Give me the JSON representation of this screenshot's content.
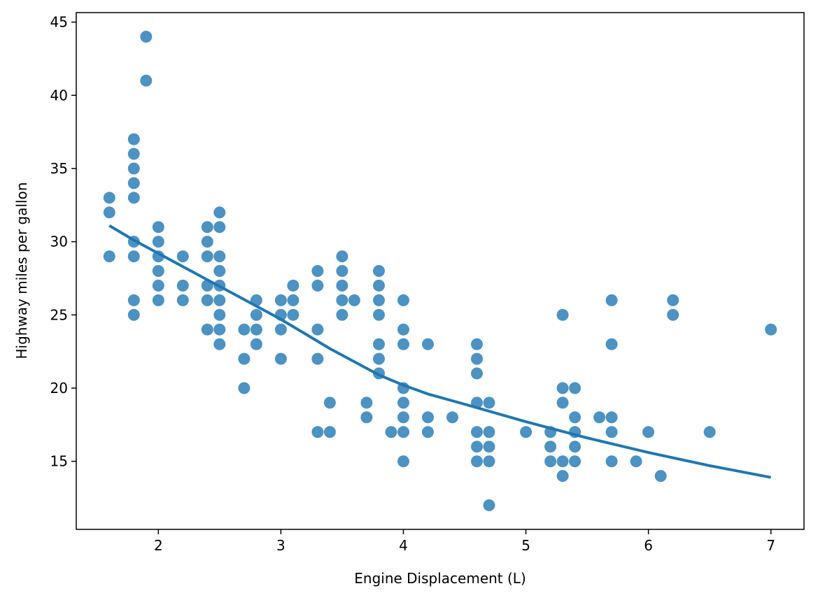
{
  "chart_data": {
    "type": "scatter",
    "xlabel": "Engine Displacement (L)",
    "ylabel": "Highway miles per gallon",
    "xlim": [
      1.33,
      7.27
    ],
    "ylim": [
      10.35,
      45.65
    ],
    "x_ticks": [
      2,
      3,
      4,
      5,
      6,
      7
    ],
    "y_ticks": [
      15,
      20,
      25,
      30,
      35,
      40,
      45
    ],
    "grid": false,
    "legend": "none",
    "point_color": "#1f77b4",
    "line_color": "#1f77b4",
    "points": [
      [
        1.6,
        33
      ],
      [
        1.6,
        32
      ],
      [
        1.6,
        29
      ],
      [
        1.8,
        37
      ],
      [
        1.8,
        36
      ],
      [
        1.8,
        35
      ],
      [
        1.8,
        34
      ],
      [
        1.8,
        33
      ],
      [
        1.8,
        30
      ],
      [
        1.8,
        29
      ],
      [
        1.8,
        26
      ],
      [
        1.8,
        25
      ],
      [
        1.9,
        44
      ],
      [
        1.9,
        41
      ],
      [
        2.0,
        31
      ],
      [
        2.0,
        30
      ],
      [
        2.0,
        29
      ],
      [
        2.0,
        28
      ],
      [
        2.0,
        27
      ],
      [
        2.0,
        26
      ],
      [
        2.2,
        29
      ],
      [
        2.2,
        27
      ],
      [
        2.2,
        26
      ],
      [
        2.4,
        31
      ],
      [
        2.4,
        30
      ],
      [
        2.4,
        29
      ],
      [
        2.4,
        27
      ],
      [
        2.4,
        26
      ],
      [
        2.4,
        24
      ],
      [
        2.5,
        32
      ],
      [
        2.5,
        31
      ],
      [
        2.5,
        29
      ],
      [
        2.5,
        28
      ],
      [
        2.5,
        27
      ],
      [
        2.5,
        26
      ],
      [
        2.5,
        25
      ],
      [
        2.5,
        24
      ],
      [
        2.5,
        23
      ],
      [
        2.7,
        24
      ],
      [
        2.7,
        22
      ],
      [
        2.7,
        20
      ],
      [
        2.8,
        26
      ],
      [
        2.8,
        25
      ],
      [
        2.8,
        24
      ],
      [
        2.8,
        23
      ],
      [
        3.0,
        26
      ],
      [
        3.0,
        25
      ],
      [
        3.0,
        24
      ],
      [
        3.0,
        22
      ],
      [
        3.1,
        27
      ],
      [
        3.1,
        26
      ],
      [
        3.1,
        25
      ],
      [
        3.3,
        28
      ],
      [
        3.3,
        27
      ],
      [
        3.3,
        24
      ],
      [
        3.3,
        22
      ],
      [
        3.3,
        17
      ],
      [
        3.4,
        19
      ],
      [
        3.4,
        17
      ],
      [
        3.5,
        29
      ],
      [
        3.5,
        28
      ],
      [
        3.5,
        27
      ],
      [
        3.5,
        26
      ],
      [
        3.5,
        25
      ],
      [
        3.6,
        26
      ],
      [
        3.7,
        19
      ],
      [
        3.7,
        18
      ],
      [
        3.8,
        28
      ],
      [
        3.8,
        27
      ],
      [
        3.8,
        26
      ],
      [
        3.8,
        25
      ],
      [
        3.8,
        23
      ],
      [
        3.8,
        22
      ],
      [
        3.8,
        21
      ],
      [
        3.9,
        17
      ],
      [
        4.0,
        26
      ],
      [
        4.0,
        24
      ],
      [
        4.0,
        23
      ],
      [
        4.0,
        20
      ],
      [
        4.0,
        19
      ],
      [
        4.0,
        18
      ],
      [
        4.0,
        17
      ],
      [
        4.0,
        15
      ],
      [
        4.2,
        23
      ],
      [
        4.2,
        18
      ],
      [
        4.2,
        17
      ],
      [
        4.4,
        18
      ],
      [
        4.6,
        23
      ],
      [
        4.6,
        22
      ],
      [
        4.6,
        21
      ],
      [
        4.6,
        19
      ],
      [
        4.6,
        17
      ],
      [
        4.6,
        16
      ],
      [
        4.6,
        15
      ],
      [
        4.7,
        19
      ],
      [
        4.7,
        17
      ],
      [
        4.7,
        16
      ],
      [
        4.7,
        15
      ],
      [
        4.7,
        12
      ],
      [
        5.0,
        17
      ],
      [
        5.2,
        17
      ],
      [
        5.2,
        16
      ],
      [
        5.2,
        15
      ],
      [
        5.3,
        25
      ],
      [
        5.3,
        20
      ],
      [
        5.3,
        19
      ],
      [
        5.3,
        15
      ],
      [
        5.3,
        14
      ],
      [
        5.4,
        20
      ],
      [
        5.4,
        18
      ],
      [
        5.4,
        17
      ],
      [
        5.4,
        16
      ],
      [
        5.4,
        15
      ],
      [
        5.6,
        18
      ],
      [
        5.7,
        26
      ],
      [
        5.7,
        23
      ],
      [
        5.7,
        18
      ],
      [
        5.7,
        17
      ],
      [
        5.7,
        15
      ],
      [
        5.9,
        15
      ],
      [
        6.0,
        17
      ],
      [
        6.1,
        14
      ],
      [
        6.2,
        26
      ],
      [
        6.2,
        25
      ],
      [
        6.5,
        17
      ],
      [
        7.0,
        24
      ]
    ],
    "trend_line": [
      [
        1.6,
        31.1
      ],
      [
        1.8,
        30.1
      ],
      [
        2.0,
        29.2
      ],
      [
        2.2,
        28.3
      ],
      [
        2.4,
        27.4
      ],
      [
        2.6,
        26.5
      ],
      [
        2.8,
        25.6
      ],
      [
        3.0,
        24.7
      ],
      [
        3.2,
        23.7
      ],
      [
        3.4,
        22.7
      ],
      [
        3.6,
        21.8
      ],
      [
        3.8,
        20.9
      ],
      [
        4.0,
        20.2
      ],
      [
        4.2,
        19.6
      ],
      [
        4.5,
        18.9
      ],
      [
        5.0,
        17.7
      ],
      [
        5.5,
        16.6
      ],
      [
        6.0,
        15.6
      ],
      [
        6.5,
        14.7
      ],
      [
        7.0,
        13.9
      ]
    ]
  }
}
